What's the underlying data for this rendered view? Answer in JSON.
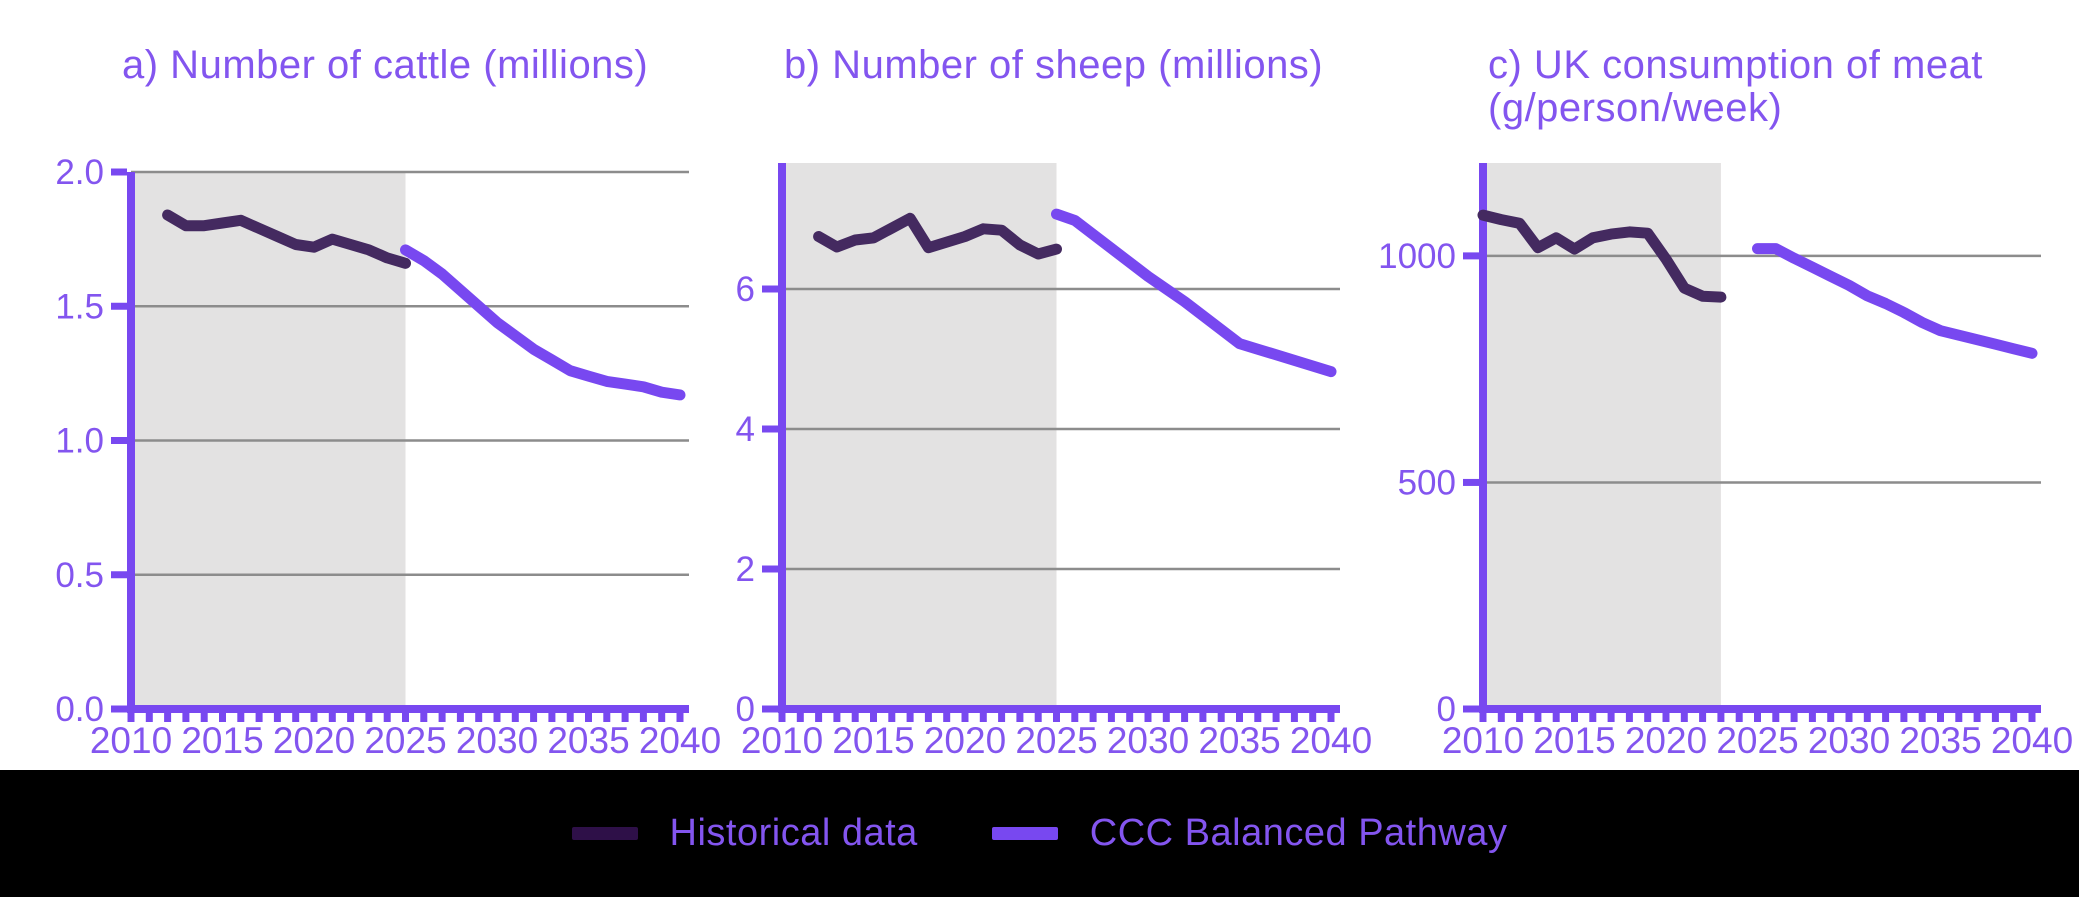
{
  "figure": {
    "description": "Three-panel line figure comparing historical data with CCC Balanced Pathway projections, 2010-2040"
  },
  "colors": {
    "accent": "#7848f0",
    "accent_text": "#8355ef",
    "historical": "#442a60",
    "historical_swatch": "#2e1048",
    "grid": "#8c8c8c",
    "shade": "#e3e2e2",
    "legend_background": "#000000",
    "page_background": "#ffffff"
  },
  "legend": {
    "position": "bottom",
    "items": [
      {
        "label": "Historical data",
        "swatch_color": "#2e1048"
      },
      {
        "label": "CCC Balanced Pathway",
        "swatch_color": "#7848f0"
      }
    ]
  },
  "chart_data": [
    {
      "type": "line",
      "title": "a) Number of cattle (millions)",
      "xlabel": "",
      "ylabel": "",
      "xlim": [
        2010,
        2040
      ],
      "ylim": [
        0,
        2.0
      ],
      "grid": true,
      "y_ticks": [
        0.0,
        0.5,
        1.0,
        1.5,
        2.0
      ],
      "y_tick_labels": [
        "0.0",
        "0.5",
        "1.0",
        "1.5",
        "2.0"
      ],
      "x_tick_labels": [
        "2010",
        "2015",
        "2020",
        "2025",
        "2030",
        "2035",
        "2040"
      ],
      "x_minor_tick_step": 1,
      "shaded_region": {
        "from": 2010,
        "to": 2025
      },
      "series": [
        {
          "name": "Historical data",
          "x": [
            2012,
            2013,
            2014,
            2015,
            2016,
            2017,
            2018,
            2019,
            2020,
            2021,
            2022,
            2023,
            2024,
            2025
          ],
          "values": [
            1.84,
            1.8,
            1.8,
            1.81,
            1.82,
            1.79,
            1.76,
            1.73,
            1.72,
            1.75,
            1.73,
            1.71,
            1.68,
            1.66
          ]
        },
        {
          "name": "CCC Balanced Pathway",
          "x": [
            2025,
            2026,
            2027,
            2028,
            2029,
            2030,
            2031,
            2032,
            2033,
            2034,
            2035,
            2036,
            2037,
            2038,
            2039,
            2040
          ],
          "values": [
            1.71,
            1.67,
            1.62,
            1.56,
            1.5,
            1.44,
            1.39,
            1.34,
            1.3,
            1.26,
            1.24,
            1.22,
            1.21,
            1.2,
            1.18,
            1.17
          ]
        }
      ]
    },
    {
      "type": "line",
      "title": "b) Number of sheep (millions)",
      "xlabel": "",
      "ylabel": "",
      "xlim": [
        2010,
        2040
      ],
      "ylim": [
        0,
        7.8
      ],
      "grid": true,
      "y_ticks": [
        0,
        2,
        4,
        6
      ],
      "y_tick_labels": [
        "0",
        "2",
        "4",
        "6"
      ],
      "x_tick_labels": [
        "2010",
        "2015",
        "2020",
        "2025",
        "2030",
        "2035",
        "2040"
      ],
      "x_minor_tick_step": 1,
      "shaded_region": {
        "from": 2010,
        "to": 2025
      },
      "series": [
        {
          "name": "Historical data",
          "x": [
            2012,
            2013,
            2014,
            2015,
            2016,
            2017,
            2018,
            2019,
            2020,
            2021,
            2022,
            2023,
            2024,
            2025
          ],
          "values": [
            6.75,
            6.6,
            6.7,
            6.73,
            6.87,
            7.01,
            6.59,
            6.67,
            6.75,
            6.86,
            6.84,
            6.63,
            6.5,
            6.57
          ]
        },
        {
          "name": "CCC Balanced Pathway",
          "x": [
            2025,
            2026,
            2027,
            2028,
            2029,
            2030,
            2031,
            2032,
            2033,
            2034,
            2035,
            2036,
            2037,
            2038,
            2039,
            2040
          ],
          "values": [
            7.07,
            6.98,
            6.78,
            6.58,
            6.38,
            6.18,
            6.0,
            5.82,
            5.62,
            5.42,
            5.22,
            5.14,
            5.06,
            4.98,
            4.9,
            4.82
          ]
        }
      ]
    },
    {
      "type": "line",
      "title": "c) UK consumption of meat (g/person/week)",
      "xlabel": "",
      "ylabel": "",
      "xlim": [
        2010,
        2040
      ],
      "ylim": [
        0,
        1205
      ],
      "grid": true,
      "y_ticks": [
        0,
        500,
        1000
      ],
      "y_tick_labels": [
        "0",
        "500",
        "1000"
      ],
      "x_tick_labels": [
        "2010",
        "2015",
        "2020",
        "2025",
        "2030",
        "2035",
        "2040"
      ],
      "x_minor_tick_step": 1,
      "shaded_region": {
        "from": 2010,
        "to": 2023
      },
      "series": [
        {
          "name": "Historical data",
          "x": [
            2010,
            2011,
            2012,
            2013,
            2014,
            2015,
            2016,
            2017,
            2018,
            2019,
            2020,
            2021,
            2022,
            2023
          ],
          "values": [
            1090,
            1080,
            1072,
            1018,
            1040,
            1015,
            1040,
            1048,
            1053,
            1050,
            993,
            929,
            911,
            909
          ]
        },
        {
          "name": "CCC Balanced Pathway",
          "x": [
            2025,
            2026,
            2027,
            2028,
            2029,
            2030,
            2031,
            2032,
            2033,
            2034,
            2035,
            2036,
            2037,
            2038,
            2039,
            2040
          ],
          "values": [
            1016,
            1016,
            995,
            975,
            955,
            935,
            912,
            895,
            875,
            853,
            835,
            825,
            815,
            805,
            795,
            785
          ]
        }
      ]
    }
  ]
}
